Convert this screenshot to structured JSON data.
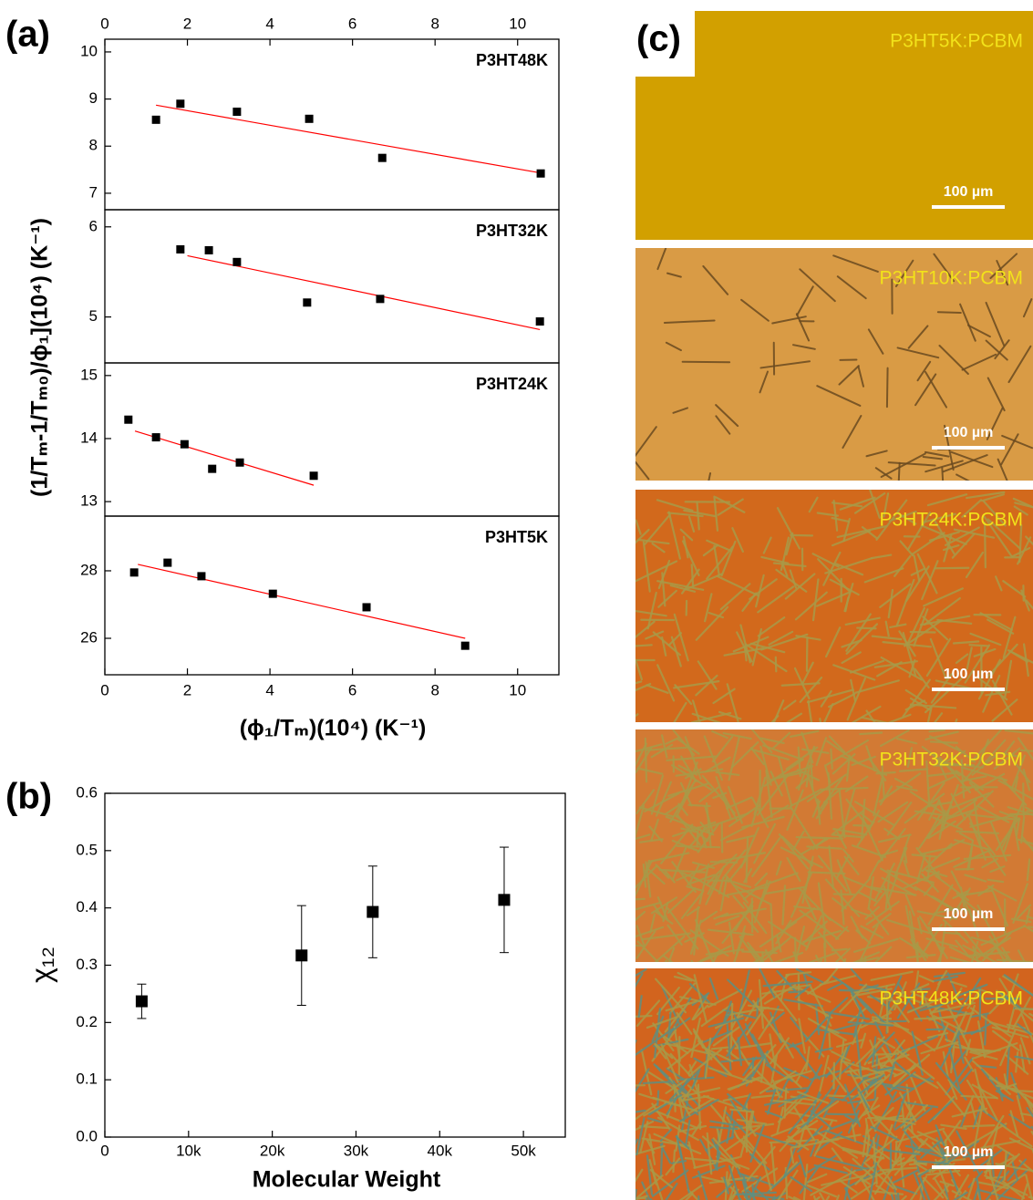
{
  "panel_labels": [
    "(a)",
    "(b)",
    "(c)"
  ],
  "chart_data": [
    {
      "type": "scatter-stack",
      "xlabel": "(ϕ₁/Tₘ)(10⁴) (K⁻¹)",
      "ylabel": "(1/Tₘ-1/Tₘ₀)/ϕ₁](10⁴) (K⁻¹)",
      "xlim": [
        0,
        11
      ],
      "xticks": [
        0,
        2,
        4,
        6,
        8,
        10
      ],
      "marker_color": "#000000",
      "fit_color": "#ff0000",
      "subplots": [
        {
          "title": "P3HT48K",
          "ylim": [
            6.65,
            10.27
          ],
          "yticks": [
            7,
            8,
            9,
            10
          ],
          "x": [
            1.24,
            1.83,
            3.2,
            4.95,
            6.72,
            10.56
          ],
          "y": [
            8.56,
            8.9,
            8.73,
            8.58,
            7.75,
            7.42
          ],
          "fit_x": [
            1.24,
            10.56
          ],
          "fit_y": [
            8.87,
            7.43
          ]
        },
        {
          "title": "P3HT32K",
          "ylim": [
            4.49,
            6.19
          ],
          "yticks": [
            5,
            6
          ],
          "x": [
            1.83,
            2.52,
            3.2,
            4.9,
            6.67,
            10.54
          ],
          "y": [
            5.75,
            5.74,
            5.61,
            5.16,
            5.2,
            4.95
          ],
          "fit_x": [
            2.0,
            10.54
          ],
          "fit_y": [
            5.68,
            4.86
          ]
        },
        {
          "title": "P3HT24K",
          "ylim": [
            12.77,
            15.2
          ],
          "yticks": [
            13,
            14,
            15
          ],
          "x": [
            0.57,
            1.24,
            1.93,
            2.6,
            3.27,
            5.06
          ],
          "y": [
            14.3,
            14.02,
            13.91,
            13.52,
            13.62,
            13.41
          ],
          "fit_x": [
            0.73,
            5.06
          ],
          "fit_y": [
            14.12,
            13.26
          ]
        },
        {
          "title": "P3HT5K",
          "ylim": [
            24.92,
            29.62
          ],
          "yticks": [
            26,
            28
          ],
          "x": [
            0.71,
            1.52,
            2.34,
            4.07,
            6.34,
            8.73
          ],
          "y": [
            27.95,
            28.24,
            27.84,
            27.32,
            26.92,
            25.78
          ],
          "fit_x": [
            0.8,
            8.73
          ],
          "fit_y": [
            28.19,
            26.0
          ]
        }
      ]
    },
    {
      "type": "errorbar",
      "xlabel": "Molecular Weight",
      "ylabel": "χ₁₂",
      "xlim": [
        0,
        55000
      ],
      "xticks": [
        0,
        {
          "value": 10000,
          "label": "10k"
        },
        {
          "value": 20000,
          "label": "20k"
        },
        {
          "value": 30000,
          "label": "30k"
        },
        {
          "value": 40000,
          "label": "40k"
        },
        {
          "value": 50000,
          "label": "50k"
        }
      ],
      "ylim": [
        0,
        0.6
      ],
      "yticks": [
        {
          "value": 0,
          "label": "0.0"
        },
        0.1,
        0.2,
        0.3,
        0.4,
        0.5,
        0.6
      ],
      "color": "#000000",
      "x": [
        4400,
        23500,
        32000,
        47700
      ],
      "values": [
        0.237,
        0.317,
        0.393,
        0.414
      ],
      "errors": [
        0.03,
        0.087,
        0.08,
        0.092
      ]
    }
  ],
  "micrographs": [
    {
      "label": "P3HT5K:PCBM",
      "scale_bar": "100 µm",
      "color": "#d2a000"
    },
    {
      "label": "P3HT10K:PCBM",
      "scale_bar": "100 µm",
      "color": "#d99b45"
    },
    {
      "label": "P3HT24K:PCBM",
      "scale_bar": "100 µm",
      "color": "#d2691c"
    },
    {
      "label": "P3HT32K:PCBM",
      "scale_bar": "100 µm",
      "color": "#d27a34"
    },
    {
      "label": "P3HT48K:PCBM",
      "scale_bar": "100 µm",
      "color": "#d2641e"
    }
  ]
}
